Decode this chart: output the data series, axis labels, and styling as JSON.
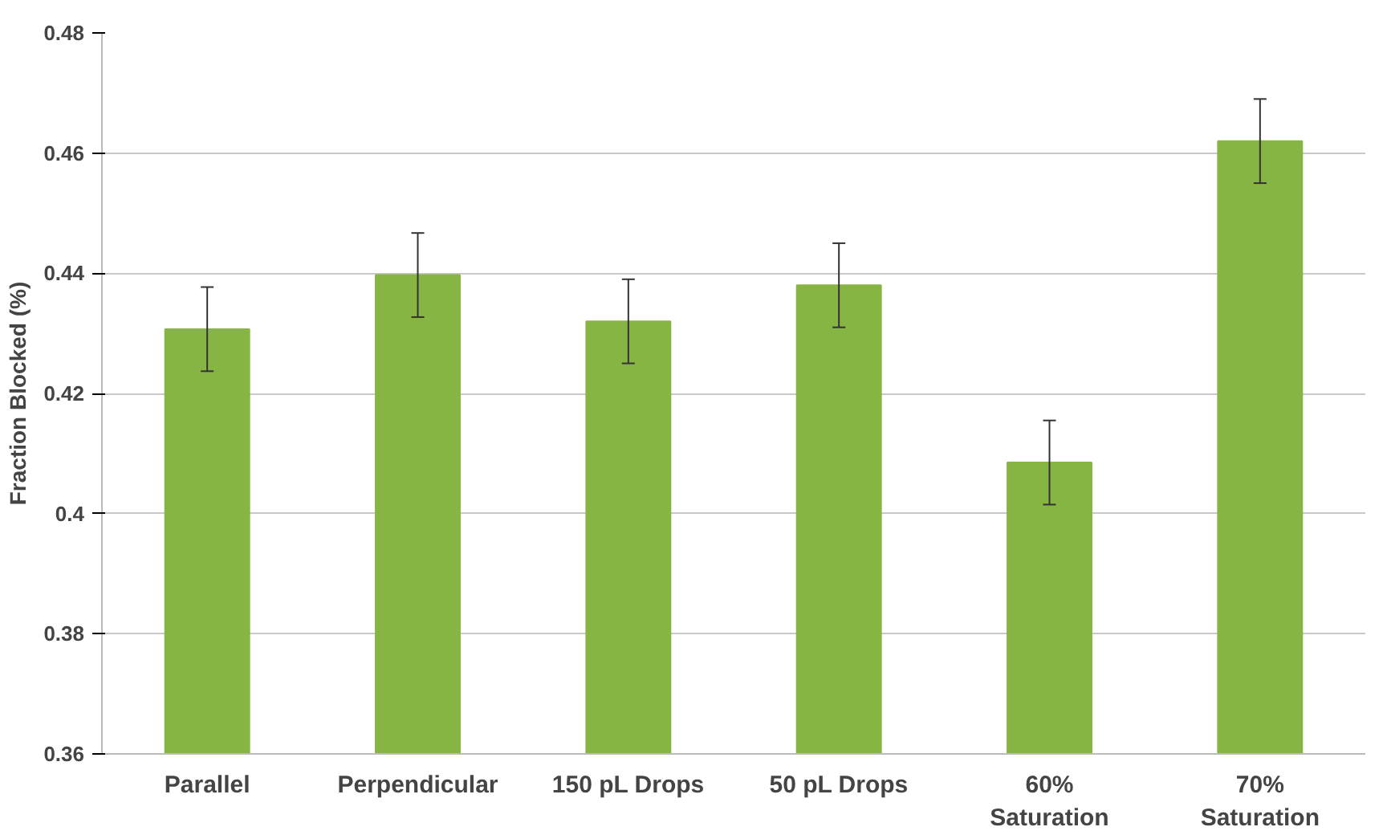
{
  "chart_data": {
    "type": "bar",
    "ylabel": "Fraction Blocked (%)",
    "categories": [
      "Parallel",
      "Perpendicular",
      "150 pL Drops",
      "50 pL Drops",
      "60%\nSaturation",
      "70%\nSaturation"
    ],
    "values": [
      0.4307,
      0.4397,
      0.432,
      0.438,
      0.4085,
      0.462
    ],
    "errors": [
      0.007,
      0.007,
      0.007,
      0.007,
      0.007,
      0.007
    ],
    "color": "#86b543",
    "ylim": [
      0.36,
      0.48
    ],
    "yticks": [
      {
        "value": 0.36,
        "label": "0.36"
      },
      {
        "value": 0.38,
        "label": "0.38"
      },
      0.4,
      {
        "value": 0.42,
        "label": "0.42"
      },
      {
        "value": 0.44,
        "label": "0.44"
      },
      {
        "value": 0.46,
        "label": "0.46"
      },
      {
        "value": 0.48,
        "label": "0.48"
      }
    ],
    "grid": "y"
  }
}
